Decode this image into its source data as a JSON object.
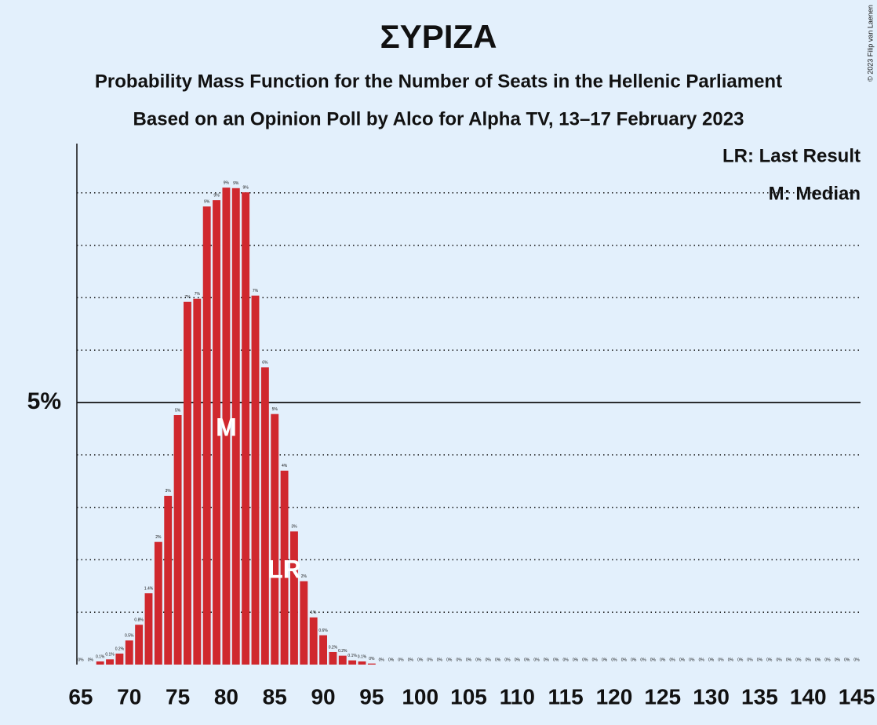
{
  "chart_data": {
    "type": "bar",
    "title": "ΣΥΡΙΖΑ",
    "subtitle": "Probability Mass Function for the Number of Seats in the Hellenic Parliament",
    "subtitle2": "Based on an Opinion Poll by Alco for Alpha TV, 13–17 February 2023",
    "copyright": "© 2023 Filip van Laenen",
    "legend": [
      "LR: Last Result",
      "M: Median"
    ],
    "median": 80,
    "median_label": "M",
    "last_result": 86,
    "last_result_label": "LR",
    "color": "#d0282e",
    "x": [
      65,
      66,
      67,
      68,
      69,
      70,
      71,
      72,
      73,
      74,
      75,
      76,
      77,
      78,
      79,
      80,
      81,
      82,
      83,
      84,
      85,
      86,
      87,
      88,
      89,
      90,
      91,
      92,
      93,
      94,
      95,
      96,
      97,
      98,
      99,
      100,
      101,
      102,
      103,
      104,
      105,
      106,
      107,
      108,
      109,
      110,
      111,
      112,
      113,
      114,
      115,
      116,
      117,
      118,
      119,
      120,
      121,
      122,
      123,
      124,
      125,
      126,
      127,
      128,
      129,
      130,
      131,
      132,
      133,
      134,
      135,
      136,
      137,
      138,
      139,
      140,
      141,
      142,
      143,
      144,
      145
    ],
    "values": [
      0,
      0,
      0.06,
      0.1,
      0.21,
      0.46,
      0.76,
      1.36,
      2.34,
      3.22,
      4.76,
      6.92,
      6.98,
      8.74,
      8.86,
      9.1,
      9.09,
      9.01,
      7.04,
      5.67,
      4.78,
      3.7,
      2.54,
      1.59,
      0.9,
      0.56,
      0.24,
      0.17,
      0.08,
      0.06,
      0.02,
      0,
      0,
      0,
      0,
      0,
      0,
      0,
      0,
      0,
      0,
      0,
      0,
      0,
      0,
      0,
      0,
      0,
      0,
      0,
      0,
      0,
      0,
      0,
      0,
      0,
      0,
      0,
      0,
      0,
      0,
      0,
      0,
      0,
      0,
      0,
      0,
      0,
      0,
      0,
      0,
      0,
      0,
      0,
      0,
      0,
      0,
      0,
      0,
      0,
      0
    ],
    "value_labels": [
      "0%",
      "0%",
      "0.1%",
      "0.1%",
      "0.2%",
      "0.5%",
      "0.8%",
      "1.4%",
      "2%",
      "3%",
      "5%",
      "7%",
      "7%",
      "9%",
      "9%",
      "9%",
      "9%",
      "9%",
      "7%",
      "6%",
      "5%",
      "4%",
      "3%",
      "2%",
      "1%",
      "0.6%",
      "0.2%",
      "0.2%",
      "0.1%",
      "0.1%",
      "0%",
      "0%",
      "0%",
      "0%",
      "0%",
      "0%",
      "0%",
      "0%",
      "0%",
      "0%",
      "0%",
      "0%",
      "0%",
      "0%",
      "0%",
      "0%",
      "0%",
      "0%",
      "0%",
      "0%",
      "0%",
      "0%",
      "0%",
      "0%",
      "0%",
      "0%",
      "0%",
      "0%",
      "0%",
      "0%",
      "0%",
      "0%",
      "0%",
      "0%",
      "0%",
      "0%",
      "0%",
      "0%",
      "0%",
      "0%",
      "0%",
      "0%",
      "0%",
      "0%",
      "0%",
      "0%",
      "0%",
      "0%",
      "0%",
      "0%",
      "0%"
    ],
    "xlim": [
      64.6,
      145.4
    ],
    "xticks": [
      65,
      70,
      75,
      80,
      85,
      90,
      95,
      100,
      105,
      110,
      115,
      120,
      125,
      130,
      135,
      140,
      145
    ],
    "ylim": [
      0,
      9.94
    ],
    "yticks": [
      {
        "value": 5,
        "label": "5%"
      }
    ],
    "minor_yticks": [
      1,
      2,
      3,
      4,
      6,
      7,
      8,
      9
    ],
    "grid": true
  }
}
